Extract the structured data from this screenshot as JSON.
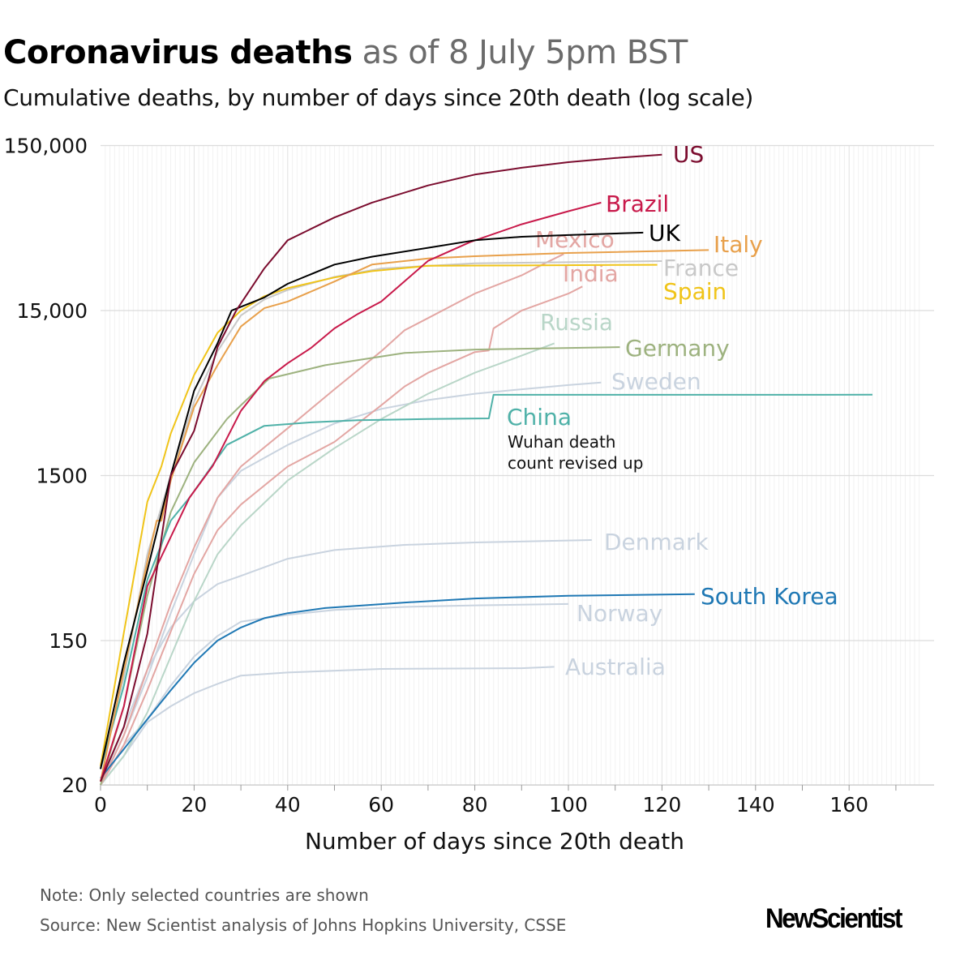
{
  "header": {
    "title_bold": "Coronavirus deaths",
    "title_light": "as of 8 July 5pm BST",
    "subtitle": "Cumulative deaths, by number of days since 20th death (log scale)"
  },
  "footer": {
    "note": "Note: Only selected countries are shown",
    "source": "Source: New Scientist analysis of Johns Hopkins University, CSSE",
    "logo": "NewScientist"
  },
  "chart_data": {
    "type": "line",
    "title": "Coronavirus deaths as of 8 July 5pm BST",
    "xlabel": "Number of days since 20th death",
    "ylabel": "Cumulative deaths (log scale)",
    "yscale": "log",
    "xlim": [
      0,
      175
    ],
    "ylim": [
      20,
      150000
    ],
    "xticks": [
      0,
      20,
      40,
      60,
      80,
      100,
      120,
      140,
      160
    ],
    "yticks": [
      20,
      150,
      1500,
      15000,
      150000
    ],
    "ytick_labels": [
      "20",
      "150",
      "1500",
      "15,000",
      "150,000"
    ],
    "grid": true,
    "annotation": {
      "country": "China",
      "lines": [
        "Wuhan death",
        "count revised up"
      ]
    },
    "series": [
      {
        "name": "Australia",
        "color": "#c9d3df",
        "points": [
          [
            0,
            20
          ],
          [
            5,
            30
          ],
          [
            10,
            48
          ],
          [
            15,
            60
          ],
          [
            20,
            72
          ],
          [
            25,
            82
          ],
          [
            30,
            92
          ],
          [
            40,
            96
          ],
          [
            48,
            98
          ],
          [
            60,
            101
          ],
          [
            90,
            102
          ],
          [
            97,
            104
          ]
        ]
      },
      {
        "name": "Norway",
        "color": "#c9d3df",
        "points": [
          [
            0,
            20
          ],
          [
            5,
            35
          ],
          [
            10,
            50
          ],
          [
            15,
            80
          ],
          [
            20,
            120
          ],
          [
            25,
            160
          ],
          [
            30,
            195
          ],
          [
            40,
            215
          ],
          [
            50,
            230
          ],
          [
            65,
            240
          ],
          [
            80,
            245
          ],
          [
            100,
            250
          ]
        ]
      },
      {
        "name": "Denmark",
        "color": "#c9d3df",
        "points": [
          [
            0,
            20
          ],
          [
            5,
            45
          ],
          [
            10,
            100
          ],
          [
            15,
            180
          ],
          [
            20,
            260
          ],
          [
            25,
            330
          ],
          [
            30,
            370
          ],
          [
            40,
            470
          ],
          [
            50,
            530
          ],
          [
            65,
            570
          ],
          [
            80,
            590
          ],
          [
            105,
            610
          ]
        ]
      },
      {
        "name": "Sweden",
        "color": "#c9d3df",
        "points": [
          [
            0,
            20
          ],
          [
            5,
            40
          ],
          [
            10,
            90
          ],
          [
            15,
            220
          ],
          [
            20,
            500
          ],
          [
            25,
            1100
          ],
          [
            30,
            1600
          ],
          [
            40,
            2300
          ],
          [
            50,
            3100
          ],
          [
            60,
            3800
          ],
          [
            70,
            4300
          ],
          [
            80,
            4700
          ],
          [
            90,
            5000
          ],
          [
            100,
            5300
          ],
          [
            107,
            5500
          ]
        ]
      },
      {
        "name": "Russia",
        "color": "#b9d6c8",
        "points": [
          [
            0,
            20
          ],
          [
            5,
            30
          ],
          [
            10,
            55
          ],
          [
            15,
            120
          ],
          [
            20,
            260
          ],
          [
            25,
            500
          ],
          [
            30,
            750
          ],
          [
            40,
            1400
          ],
          [
            50,
            2200
          ],
          [
            60,
            3300
          ],
          [
            70,
            4700
          ],
          [
            80,
            6300
          ],
          [
            90,
            8000
          ],
          [
            97,
            9500
          ]
        ]
      },
      {
        "name": "India",
        "color": "#e3a6a3",
        "points": [
          [
            0,
            20
          ],
          [
            5,
            35
          ],
          [
            10,
            75
          ],
          [
            15,
            170
          ],
          [
            20,
            380
          ],
          [
            25,
            700
          ],
          [
            30,
            1000
          ],
          [
            40,
            1700
          ],
          [
            50,
            2400
          ],
          [
            60,
            4000
          ],
          [
            65,
            5200
          ],
          [
            70,
            6300
          ],
          [
            80,
            8400
          ],
          [
            83,
            8600
          ],
          [
            84,
            11700
          ],
          [
            90,
            15000
          ],
          [
            100,
            19000
          ],
          [
            103,
            21000
          ]
        ]
      },
      {
        "name": "Mexico",
        "color": "#e3a6a3",
        "points": [
          [
            0,
            20
          ],
          [
            5,
            40
          ],
          [
            10,
            100
          ],
          [
            15,
            250
          ],
          [
            20,
            550
          ],
          [
            25,
            1100
          ],
          [
            30,
            1700
          ],
          [
            40,
            2900
          ],
          [
            50,
            5000
          ],
          [
            60,
            8500
          ],
          [
            65,
            11400
          ],
          [
            70,
            13500
          ],
          [
            80,
            19000
          ],
          [
            90,
            24500
          ],
          [
            95,
            29000
          ],
          [
            99,
            33000
          ]
        ]
      },
      {
        "name": "France",
        "color": "#c8c8c8",
        "points": [
          [
            0,
            25
          ],
          [
            5,
            90
          ],
          [
            10,
            500
          ],
          [
            15,
            1500
          ],
          [
            20,
            4200
          ],
          [
            25,
            8500
          ],
          [
            30,
            14000
          ],
          [
            35,
            17500
          ],
          [
            40,
            20000
          ],
          [
            50,
            24000
          ],
          [
            60,
            27000
          ],
          [
            80,
            29000
          ],
          [
            120,
            29900
          ]
        ]
      },
      {
        "name": "Germany",
        "color": "#9db27f",
        "points": [
          [
            0,
            20
          ],
          [
            5,
            60
          ],
          [
            10,
            280
          ],
          [
            15,
            900
          ],
          [
            20,
            1800
          ],
          [
            27,
            3300
          ],
          [
            30,
            4000
          ],
          [
            36,
            5800
          ],
          [
            48,
            7000
          ],
          [
            65,
            8300
          ],
          [
            80,
            8700
          ],
          [
            111,
            9000
          ]
        ]
      },
      {
        "name": "China",
        "color": "#4fb1a8",
        "points": [
          [
            0,
            25
          ],
          [
            5,
            80
          ],
          [
            10,
            350
          ],
          [
            15,
            800
          ],
          [
            19,
            1100
          ],
          [
            27,
            2300
          ],
          [
            35,
            3000
          ],
          [
            45,
            3150
          ],
          [
            55,
            3250
          ],
          [
            70,
            3300
          ],
          [
            83,
            3330
          ],
          [
            84,
            4630
          ],
          [
            165,
            4634
          ]
        ]
      },
      {
        "name": "South Korea",
        "color": "#1f78b4",
        "points": [
          [
            0,
            22
          ],
          [
            5,
            33
          ],
          [
            10,
            50
          ],
          [
            15,
            75
          ],
          [
            20,
            110
          ],
          [
            25,
            150
          ],
          [
            30,
            180
          ],
          [
            35,
            205
          ],
          [
            40,
            220
          ],
          [
            48,
            236
          ],
          [
            65,
            255
          ],
          [
            80,
            270
          ],
          [
            100,
            280
          ],
          [
            127,
            287
          ]
        ]
      },
      {
        "name": "Spain",
        "color": "#f0c419",
        "points": [
          [
            0,
            26
          ],
          [
            5,
            168
          ],
          [
            10,
            1040
          ],
          [
            13,
            1700
          ],
          [
            15,
            2700
          ],
          [
            20,
            6100
          ],
          [
            25,
            11000
          ],
          [
            30,
            15000
          ],
          [
            35,
            18300
          ],
          [
            40,
            20500
          ],
          [
            50,
            23800
          ],
          [
            58,
            26000
          ],
          [
            70,
            28000
          ],
          [
            119,
            28400
          ]
        ]
      },
      {
        "name": "Italy",
        "color": "#e8a04b",
        "points": [
          [
            0,
            21
          ],
          [
            5,
            100
          ],
          [
            10,
            450
          ],
          [
            12,
            800
          ],
          [
            13,
            800
          ],
          [
            15,
            1400
          ],
          [
            20,
            3900
          ],
          [
            25,
            7000
          ],
          [
            30,
            12000
          ],
          [
            35,
            15500
          ],
          [
            40,
            17000
          ],
          [
            50,
            22500
          ],
          [
            58,
            28500
          ],
          [
            70,
            31000
          ],
          [
            80,
            32000
          ],
          [
            100,
            33500
          ],
          [
            130,
            34900
          ]
        ]
      },
      {
        "name": "Brazil",
        "color": "#c8194a",
        "points": [
          [
            0,
            21
          ],
          [
            5,
            60
          ],
          [
            10,
            320
          ],
          [
            19,
            1100
          ],
          [
            24,
            1720
          ],
          [
            30,
            3700
          ],
          [
            35,
            5600
          ],
          [
            40,
            7200
          ],
          [
            45,
            8900
          ],
          [
            50,
            11700
          ],
          [
            55,
            14300
          ],
          [
            60,
            17000
          ],
          [
            70,
            30000
          ],
          [
            79,
            39000
          ],
          [
            90,
            50000
          ],
          [
            100,
            60000
          ],
          [
            107,
            67600
          ]
        ]
      },
      {
        "name": "UK",
        "color": "#000000",
        "points": [
          [
            0,
            25
          ],
          [
            5,
            110
          ],
          [
            10,
            400
          ],
          [
            15,
            1500
          ],
          [
            20,
            4900
          ],
          [
            25,
            9500
          ],
          [
            28,
            15000
          ],
          [
            35,
            18000
          ],
          [
            40,
            21800
          ],
          [
            50,
            28500
          ],
          [
            58,
            31800
          ],
          [
            70,
            36000
          ],
          [
            80,
            40000
          ],
          [
            90,
            42000
          ],
          [
            100,
            43000
          ],
          [
            116,
            44500
          ]
        ]
      },
      {
        "name": "US",
        "color": "#7b0c2e",
        "points": [
          [
            0,
            21
          ],
          [
            5,
            45
          ],
          [
            10,
            165
          ],
          [
            15,
            1500
          ],
          [
            20,
            2800
          ],
          [
            25,
            9000
          ],
          [
            29,
            15000
          ],
          [
            35,
            27000
          ],
          [
            40,
            40000
          ],
          [
            50,
            55000
          ],
          [
            58,
            67600
          ],
          [
            70,
            86000
          ],
          [
            80,
            100000
          ],
          [
            90,
            110000
          ],
          [
            100,
            119000
          ],
          [
            110,
            126000
          ],
          [
            120,
            132000
          ]
        ]
      }
    ]
  }
}
